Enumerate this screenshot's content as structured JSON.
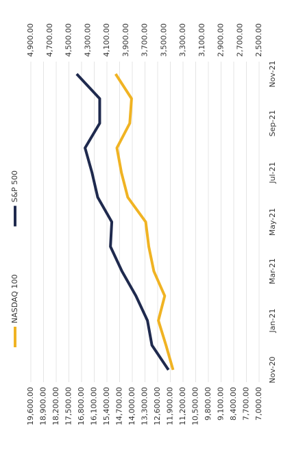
{
  "chart_data": {
    "type": "line",
    "categories": [
      "Nov-20",
      null,
      "Jan-21",
      null,
      "Mar-21",
      null,
      "May-21",
      null,
      "Jul-21",
      null,
      "Sep-21",
      null,
      "Nov-21"
    ],
    "series": [
      {
        "name": "NASDAQ 100",
        "color": "#f0b323",
        "values": [
          11750,
          12140,
          12560,
          12210,
          12810,
          13090,
          13260,
          14250,
          14600,
          14850,
          14140,
          14040,
          14920
        ]
      },
      {
        "name": "S&P 500",
        "color": "#1f2a4e",
        "axis": "y2",
        "values": [
          3453,
          3627,
          3674,
          3795,
          3942,
          4063,
          4049,
          4197,
          4257,
          4330,
          4176,
          4176,
          4418
        ]
      }
    ],
    "ylim": [
      7000,
      19600
    ],
    "yticks": [
      {
        "value": 7000,
        "label": "7,000.00"
      },
      {
        "value": 7700,
        "label": "7,700.00"
      },
      {
        "value": 8400,
        "label": "8,400.00"
      },
      {
        "value": 9100,
        "label": "9,100.00"
      },
      {
        "value": 9800,
        "label": "9,800.00"
      },
      {
        "value": 10500,
        "label": "10,500.00"
      },
      {
        "value": 11200,
        "label": "11,200.00"
      },
      {
        "value": 11900,
        "label": "11,900.00"
      },
      {
        "value": 12600,
        "label": "12,600.00"
      },
      {
        "value": 13300,
        "label": "13,300.00"
      },
      {
        "value": 14000,
        "label": "14,000.00"
      },
      {
        "value": 14700,
        "label": "14,700.00"
      },
      {
        "value": 15400,
        "label": "15,400.00"
      },
      {
        "value": 16100,
        "label": "16,100.00"
      },
      {
        "value": 16800,
        "label": "16,800.00"
      },
      {
        "value": 17500,
        "label": "17,500.00"
      },
      {
        "value": 18200,
        "label": "18,200.00"
      },
      {
        "value": 18900,
        "label": "18,900.00"
      },
      {
        "value": 19600,
        "label": "19,600.00"
      }
    ],
    "y2lim": [
      2500,
      4900
    ],
    "y2ticks": [
      {
        "value": 2500,
        "label": "2,500.00"
      },
      {
        "value": 2700,
        "label": "2,700.00"
      },
      {
        "value": 2900,
        "label": "2,900.00"
      },
      {
        "value": 3100,
        "label": "3,100.00"
      },
      {
        "value": 3300,
        "label": "3,300.00"
      },
      {
        "value": 3500,
        "label": "3,500.00"
      },
      {
        "value": 3700,
        "label": "3,700.00"
      },
      {
        "value": 3900,
        "label": "3,900.00"
      },
      {
        "value": 4100,
        "label": "4,100.00"
      },
      {
        "value": 4300,
        "label": "4,300.00"
      },
      {
        "value": 4500,
        "label": "4,500.00"
      },
      {
        "value": 4700,
        "label": "4,700.00"
      },
      {
        "value": 4900,
        "label": "4,900.00"
      }
    ],
    "grid": true,
    "legend": "top"
  }
}
